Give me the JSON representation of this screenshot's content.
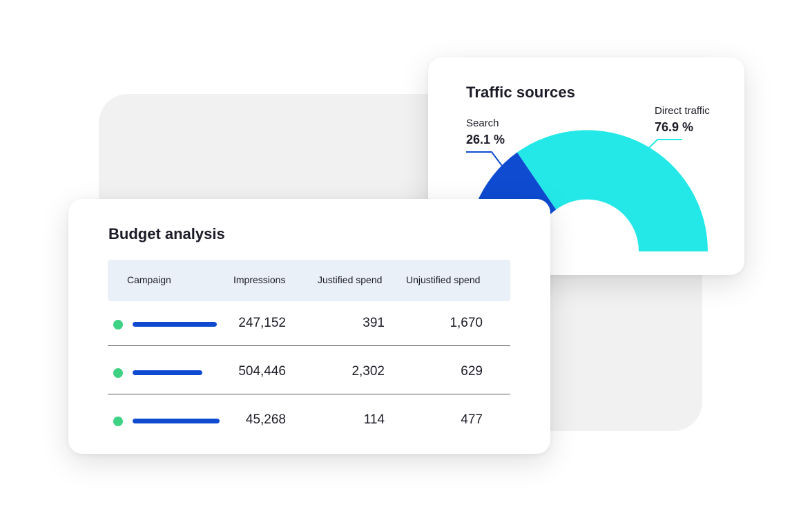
{
  "traffic_card": {
    "title": "Traffic sources",
    "segments": [
      {
        "name": "Search",
        "value": "26.1 %",
        "color": "#0e4bd1"
      },
      {
        "name": "Direct traffic",
        "value": "76.9 %",
        "color": "#24e8e8"
      }
    ]
  },
  "budget_card": {
    "title": "Budget analysis",
    "columns": [
      "Campaign",
      "Impressions",
      "Justified spend",
      "Unjustified spend"
    ],
    "rows": [
      {
        "status_color": "#3fd184",
        "campaign_bar_fraction": 0.97,
        "impressions": "247,152",
        "justified": "391",
        "unjustified": "1,670"
      },
      {
        "status_color": "#3fd184",
        "campaign_bar_fraction": 0.8,
        "impressions": "504,446",
        "justified": "2,302",
        "unjustified": "629"
      },
      {
        "status_color": "#3fd184",
        "campaign_bar_fraction": 1.0,
        "impressions": "45,268",
        "justified": "114",
        "unjustified": "477"
      }
    ]
  },
  "colors": {
    "accent_blue": "#0e4bd1",
    "accent_cyan": "#24e8e8",
    "status_green": "#3fd184",
    "header_bg": "#e9f0f7",
    "background_panel": "#f1f1f1"
  }
}
